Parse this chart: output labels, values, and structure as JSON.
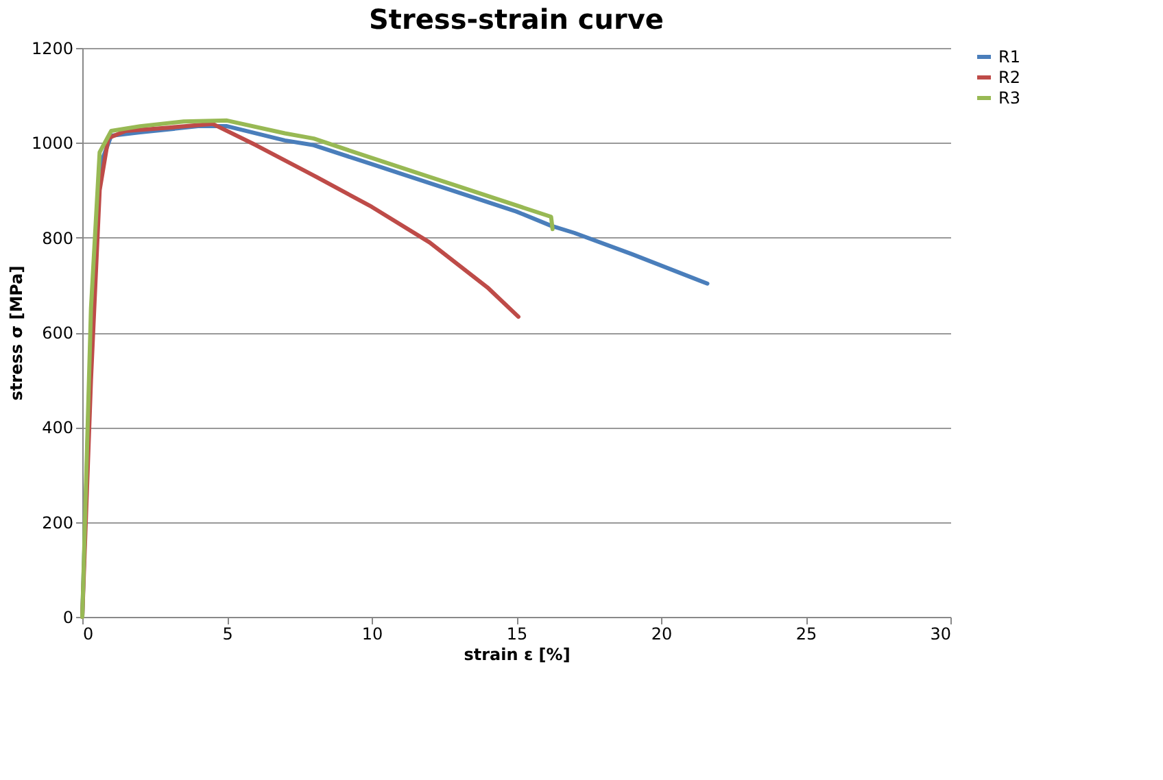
{
  "chart_data": {
    "type": "line",
    "title": "Stress-strain curve",
    "xlabel": "strain ε [%]",
    "ylabel": "stress σ [MPa]",
    "xlim": [
      0,
      30
    ],
    "xticks": [
      0,
      5,
      10,
      15,
      20,
      25,
      30
    ],
    "ylim": [
      0,
      1200
    ],
    "yticks": [
      0,
      200,
      400,
      600,
      800,
      1000,
      1200
    ],
    "grid": "y",
    "legend": "right",
    "marker": "none",
    "line_style": "solid",
    "series": [
      {
        "name": "R1",
        "color": "#4a7ebb",
        "x": [
          0,
          0.3,
          0.6,
          1,
          2,
          4,
          5,
          7,
          8,
          10,
          13,
          15,
          16.2,
          17,
          19,
          21.6
        ],
        "values": [
          0,
          600,
          950,
          1015,
          1022,
          1035,
          1035,
          1005,
          995,
          955,
          895,
          855,
          825,
          810,
          765,
          703
        ]
      },
      {
        "name": "R2",
        "color": "#be4b48",
        "x": [
          0,
          0.3,
          0.6,
          0.9,
          1.5,
          3,
          4.5,
          6,
          8,
          10,
          12,
          14,
          15.07
        ],
        "values": [
          0,
          500,
          900,
          1010,
          1025,
          1032,
          1040,
          995,
          931,
          865,
          790,
          695,
          633
        ]
      },
      {
        "name": "R3",
        "color": "#98b954",
        "x": [
          0,
          0.3,
          0.6,
          1,
          2,
          3.5,
          5,
          7,
          8,
          10,
          13,
          16.2,
          16.25
        ],
        "values": [
          0,
          650,
          980,
          1025,
          1035,
          1045,
          1047,
          1020,
          1009,
          968,
          908,
          844,
          818
        ]
      }
    ]
  }
}
